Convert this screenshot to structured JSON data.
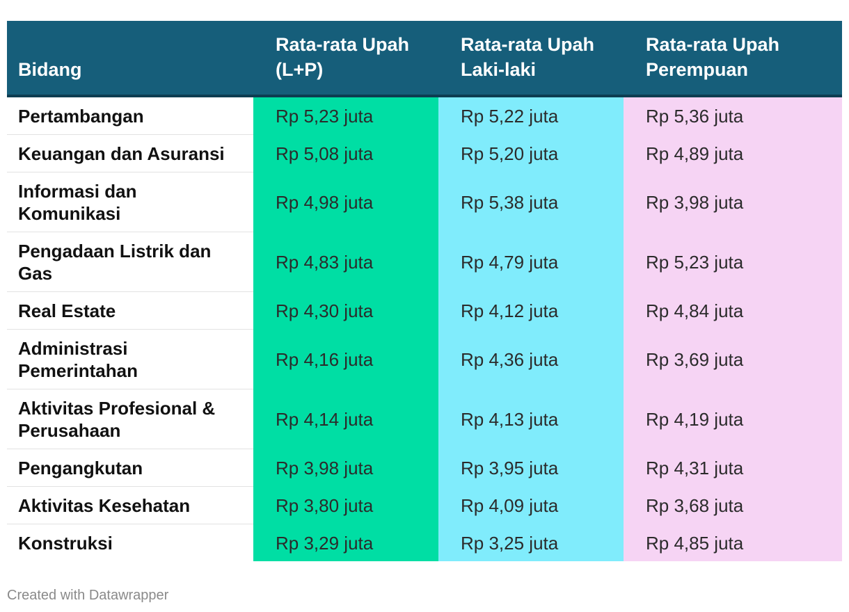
{
  "chart_data": {
    "type": "table",
    "columns": [
      "Bidang",
      "Rata-rata Upah (L+P)",
      "Rata-rata Upah Laki-laki",
      "Rata-rata Upah Perempuan"
    ],
    "column_colors": [
      "#ffffff",
      "#00dea4",
      "#80ecfc",
      "#f6d4f4"
    ],
    "header_color": "#165e7a",
    "rows": [
      {
        "bidang": "Pertambangan",
        "lp": "Rp 5,23 juta",
        "l": "Rp 5,22 juta",
        "p": "Rp 5,36 juta"
      },
      {
        "bidang": "Keuangan dan Asuransi",
        "lp": "Rp 5,08 juta",
        "l": "Rp 5,20 juta",
        "p": "Rp 4,89 juta"
      },
      {
        "bidang": "Informasi dan Komunikasi",
        "lp": "Rp 4,98 juta",
        "l": "Rp 5,38 juta",
        "p": "Rp 3,98 juta"
      },
      {
        "bidang": "Pengadaan Listrik dan Gas",
        "lp": "Rp 4,83 juta",
        "l": "Rp 4,79 juta",
        "p": "Rp 5,23 juta"
      },
      {
        "bidang": "Real Estate",
        "lp": "Rp 4,30 juta",
        "l": "Rp 4,12 juta",
        "p": "Rp 4,84 juta"
      },
      {
        "bidang": "Administrasi Pemerintahan",
        "lp": "Rp 4,16 juta",
        "l": "Rp 4,36 juta",
        "p": "Rp 3,69 juta"
      },
      {
        "bidang": "Aktivitas Profesional & Perusahaan",
        "lp": "Rp 4,14 juta",
        "l": "Rp 4,13 juta",
        "p": "Rp 4,19 juta"
      },
      {
        "bidang": "Pengangkutan",
        "lp": "Rp 3,98 juta",
        "l": "Rp 3,95 juta",
        "p": "Rp 4,31 juta"
      },
      {
        "bidang": "Aktivitas Kesehatan",
        "lp": "Rp 3,80 juta",
        "l": "Rp 4,09 juta",
        "p": "Rp 3,68 juta"
      },
      {
        "bidang": "Konstruksi",
        "lp": "Rp 3,29 juta",
        "l": "Rp 3,25 juta",
        "p": "Rp 4,85 juta"
      }
    ]
  },
  "footer": "Created with Datawrapper"
}
